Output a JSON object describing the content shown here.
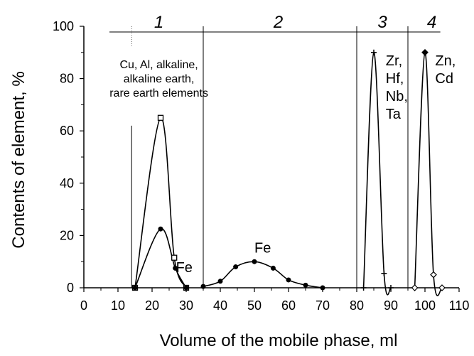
{
  "chart_data": {
    "type": "line",
    "xlabel": "Volume of the mobile phase, ml",
    "ylabel": "Contents of element, %",
    "xlim": [
      0,
      110
    ],
    "ylim": [
      0,
      100
    ],
    "x_ticks": [
      0,
      10,
      20,
      30,
      40,
      50,
      60,
      70,
      80,
      90,
      100,
      110
    ],
    "y_ticks": [
      0,
      20,
      40,
      60,
      80,
      100
    ],
    "grid": false,
    "legend": "none",
    "zone_boundaries": [
      14,
      35,
      80,
      95
    ],
    "zones": [
      {
        "label": "1",
        "x": 22
      },
      {
        "label": "2",
        "x": 57
      },
      {
        "label": "3",
        "x": 87.5
      },
      {
        "label": "4",
        "x": 102
      }
    ],
    "series": [
      {
        "marker": "square",
        "points": [
          [
            15,
            0
          ],
          [
            22.5,
            65
          ],
          [
            26.5,
            11.5
          ],
          [
            30,
            0
          ]
        ]
      },
      {
        "marker": "circle",
        "points": [
          [
            15,
            0
          ],
          [
            22.5,
            22.5
          ],
          [
            26.8,
            7.5
          ],
          [
            30,
            0
          ]
        ]
      },
      {
        "marker": "circle",
        "points": [
          [
            35,
            0.5
          ],
          [
            40,
            2.5
          ],
          [
            44.5,
            8
          ],
          [
            50,
            10
          ],
          [
            55.5,
            7.5
          ],
          [
            60,
            3
          ],
          [
            65,
            1
          ],
          [
            70,
            0
          ]
        ]
      },
      {
        "marker": "plus",
        "points": [
          [
            82,
            0
          ],
          [
            85,
            90
          ],
          [
            88,
            5.5
          ],
          [
            90,
            0
          ]
        ]
      },
      {
        "marker": "diamond",
        "points": [
          [
            97,
            0
          ],
          [
            100,
            90
          ],
          [
            102.5,
            5
          ],
          [
            105,
            0
          ]
        ]
      }
    ],
    "annotations": [
      {
        "lines": [
          "Cu, Al, alkaline,",
          "alkaline earth,",
          "rare earth elements"
        ],
        "x": 22,
        "y": 84,
        "style": "small"
      },
      {
        "lines": [
          "Fe"
        ],
        "x": 27,
        "y": 6,
        "style": "normal"
      },
      {
        "lines": [
          "Fe"
        ],
        "x": 50,
        "y": 13.5,
        "style": "normal"
      },
      {
        "lines": [
          "Zr,",
          "Hf,",
          "Nb,",
          "Ta"
        ],
        "x": 88.5,
        "y": 85,
        "style": "normal"
      },
      {
        "lines": [
          "Zn,",
          "Cd"
        ],
        "x": 103,
        "y": 85,
        "style": "normal"
      }
    ]
  }
}
